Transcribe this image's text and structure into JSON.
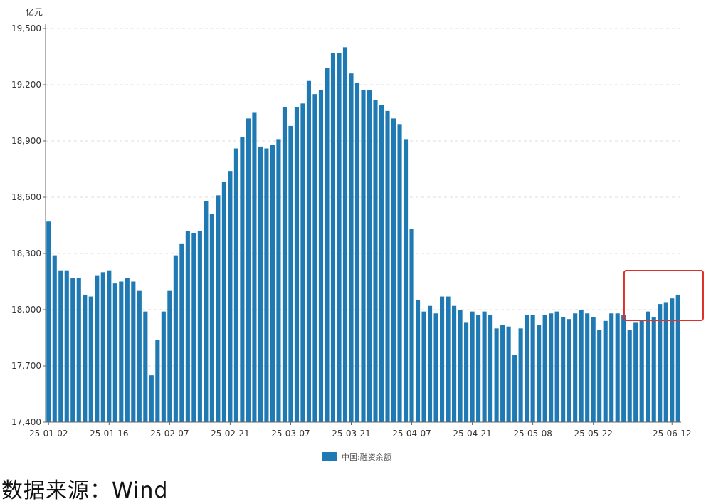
{
  "chart_data": {
    "type": "bar",
    "ylabel": "亿元",
    "ylim": [
      17400,
      19500
    ],
    "yticks": [
      "17,400",
      "17,700",
      "18,000",
      "18,300",
      "18,600",
      "18,900",
      "19,200",
      "19,500"
    ],
    "ytick_values": [
      17400,
      17700,
      18000,
      18300,
      18600,
      18900,
      19200,
      19500
    ],
    "xtick_labels": [
      {
        "index": 0,
        "label": "25-01-02"
      },
      {
        "index": 10,
        "label": "25-01-16"
      },
      {
        "index": 20,
        "label": "25-02-07"
      },
      {
        "index": 30,
        "label": "25-02-21"
      },
      {
        "index": 40,
        "label": "25-03-07"
      },
      {
        "index": 50,
        "label": "25-03-21"
      },
      {
        "index": 60,
        "label": "25-04-07"
      },
      {
        "index": 70,
        "label": "25-04-21"
      },
      {
        "index": 80,
        "label": "25-05-08"
      },
      {
        "index": 90,
        "label": "25-05-22"
      },
      {
        "index": 103,
        "label": "25-06-12"
      }
    ],
    "grid": true,
    "legend_position": "bottom-center",
    "series": [
      {
        "name": "中国:融资余额",
        "color": "#1f7ab4",
        "values": [
          18470,
          18290,
          18210,
          18210,
          18170,
          18170,
          18080,
          18070,
          18180,
          18200,
          18210,
          18140,
          18150,
          18170,
          18150,
          18100,
          17990,
          17650,
          17840,
          17990,
          18100,
          18290,
          18350,
          18420,
          18410,
          18420,
          18580,
          18510,
          18610,
          18680,
          18740,
          18860,
          18920,
          19020,
          19050,
          18870,
          18860,
          18880,
          18910,
          19080,
          18980,
          19080,
          19100,
          19220,
          19150,
          19170,
          19290,
          19370,
          19370,
          19400,
          19260,
          19210,
          19170,
          19170,
          19120,
          19090,
          19060,
          19020,
          18990,
          18910,
          18430,
          18050,
          17990,
          18020,
          17980,
          18070,
          18070,
          18020,
          18000,
          17930,
          17990,
          17970,
          17990,
          17970,
          17900,
          17920,
          17910,
          17760,
          17900,
          17970,
          17970,
          17920,
          17970,
          17980,
          17990,
          17960,
          17950,
          17980,
          18000,
          17980,
          17960,
          17890,
          17940,
          17980,
          17980,
          17970,
          17890,
          17930,
          17940,
          17990,
          17960,
          18030,
          18040,
          18060,
          18080
        ]
      }
    ]
  },
  "highlight_box": {
    "from_index": 97,
    "to_index": 104,
    "color": "#e0302a"
  },
  "footer": {
    "source_text": "数据来源：Wind"
  }
}
